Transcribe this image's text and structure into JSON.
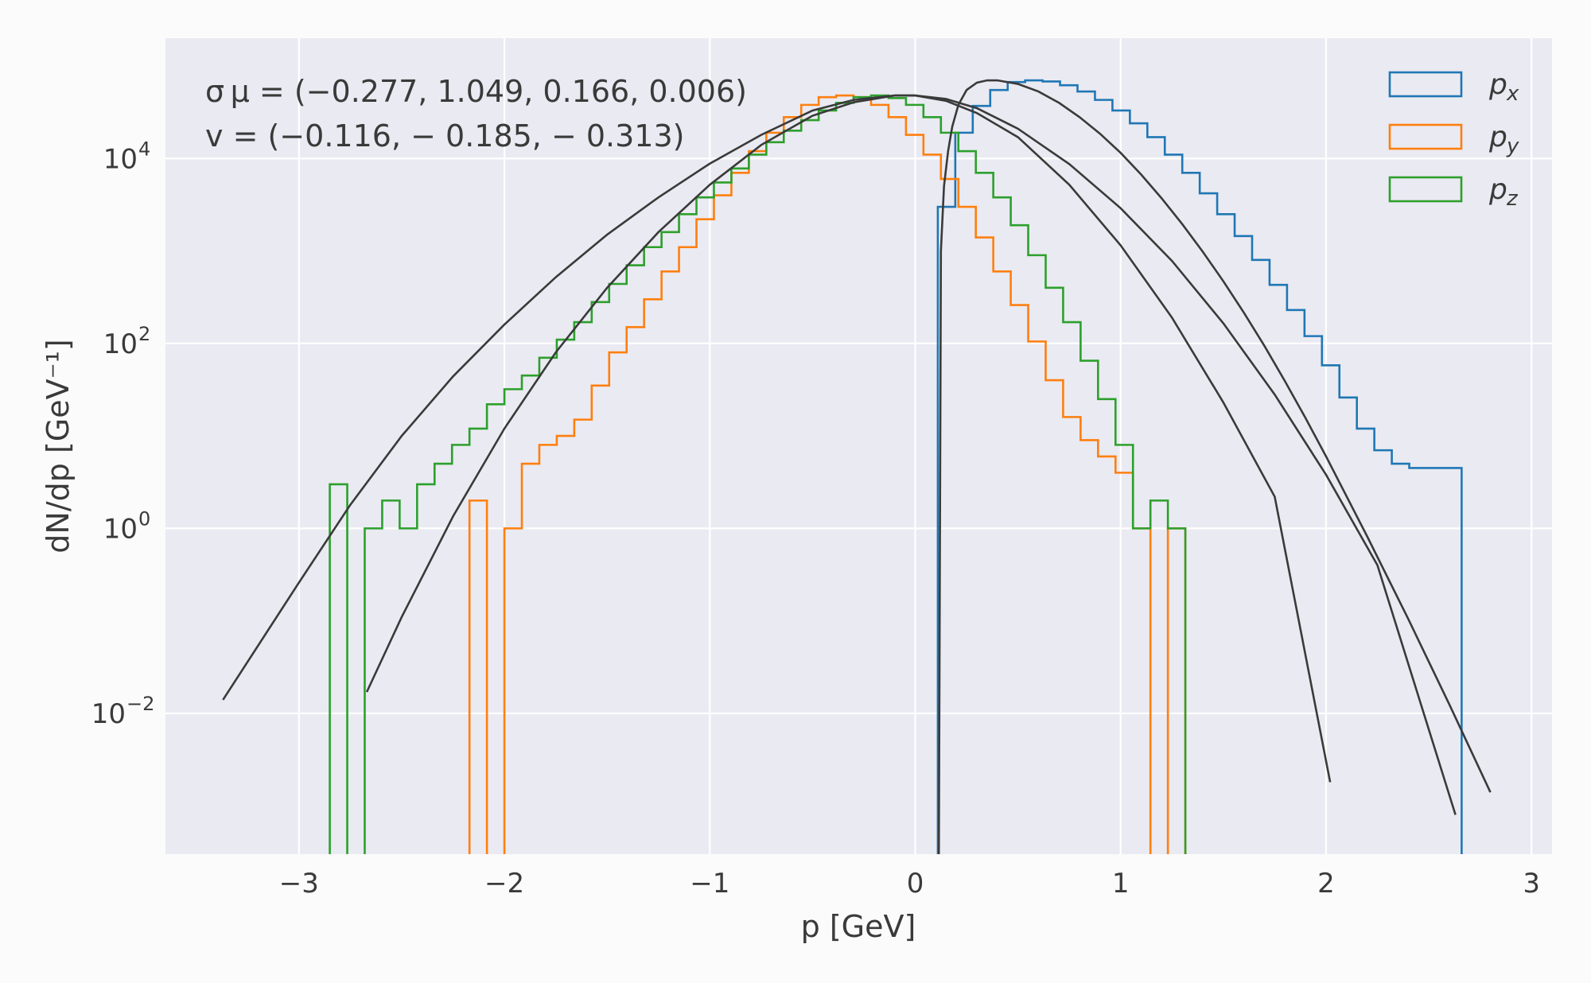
{
  "chart_data": {
    "type": "histogram",
    "title": "",
    "xlabel": "p [GeV]",
    "ylabel": "dN/dp [GeV⁻¹]",
    "xscale": "linear",
    "yscale": "log",
    "xlim": [
      -3.65,
      3.1
    ],
    "ylim": [
      0.0003,
      200000
    ],
    "grid": true,
    "legend_position": "top-right",
    "x_ticks": [
      -3,
      -2,
      -1,
      0,
      1,
      2,
      3
    ],
    "x_tick_labels": [
      "−3",
      "−2",
      "−1",
      "0",
      "1",
      "2",
      "3"
    ],
    "y_ticks": [
      0.01,
      1,
      100,
      10000
    ],
    "y_tick_labels": [
      {
        "base": "10",
        "exp": "−2"
      },
      {
        "base": "10",
        "exp": "0"
      },
      {
        "base": "10",
        "exp": "2"
      },
      {
        "base": "10",
        "exp": "4"
      }
    ],
    "annotations": [
      "σ μ = (−0.277, 1.049, 0.166, 0.006)",
      "v = (−0.116,  − 0.185,  − 0.313)"
    ],
    "bin_width": 0.085,
    "series": [
      {
        "name": "p_x",
        "label_main": "p",
        "label_sub": "x",
        "color": "#1f77b4",
        "bins_x0": 0.11,
        "counts": [
          3000,
          19000,
          37000,
          55000,
          67000,
          70000,
          68000,
          62000,
          53000,
          43000,
          33000,
          24000,
          17000,
          11000,
          7000,
          4200,
          2500,
          1450,
          800,
          430,
          230,
          120,
          58,
          26,
          12,
          7,
          5,
          4.5,
          4.5,
          4.5
        ]
      },
      {
        "name": "p_y",
        "label_main": "p",
        "label_sub": "y",
        "color": "#ff7f0e",
        "bins_x0": -2.17,
        "counts": [
          2,
          0,
          1,
          5,
          8,
          10,
          15,
          35,
          80,
          150,
          300,
          600,
          1100,
          2200,
          4000,
          7000,
          12000,
          19000,
          28000,
          38000,
          46000,
          48000,
          46000,
          38000,
          28000,
          18000,
          11000,
          6000,
          3000,
          1400,
          600,
          260,
          105,
          40,
          16,
          9,
          6,
          4,
          1,
          0,
          1
        ]
      },
      {
        "name": "p_z",
        "label_main": "p",
        "label_sub": "z",
        "color": "#2ca02c",
        "bins_x0": -2.85,
        "counts": [
          3,
          0,
          1,
          2,
          1,
          3,
          5,
          8,
          12,
          22,
          32,
          45,
          70,
          110,
          170,
          280,
          440,
          700,
          1100,
          1600,
          2500,
          3800,
          5500,
          7800,
          11000,
          15000,
          20000,
          26000,
          33000,
          40000,
          46000,
          48000,
          45000,
          38000,
          28000,
          19000,
          12000,
          7000,
          3800,
          1900,
          900,
          400,
          170,
          65,
          25,
          8,
          1,
          2,
          1
        ]
      }
    ],
    "fits": [
      {
        "name": "fit_x",
        "x": [
          0.115,
          0.125,
          0.14,
          0.16,
          0.18,
          0.21,
          0.25,
          0.3,
          0.35,
          0.4,
          0.5,
          0.6,
          0.7,
          0.8,
          0.9,
          1.0,
          1.1,
          1.2,
          1.3,
          1.4,
          1.5,
          1.6,
          1.7,
          1.8,
          1.9,
          2.0,
          2.2,
          2.4,
          2.6,
          2.8
        ],
        "y": [
          0.0003,
          1000,
          5000,
          12000,
          22000,
          38000,
          55000,
          66000,
          70000,
          70000,
          64000,
          53000,
          40000,
          28000,
          18500,
          11500,
          6700,
          3700,
          1950,
          980,
          470,
          215,
          94,
          39,
          15.6,
          6.0,
          0.82,
          0.105,
          0.0125,
          0.0014
        ]
      },
      {
        "name": "fit_y",
        "x": [
          -2.67,
          -2.5,
          -2.25,
          -2.0,
          -1.75,
          -1.5,
          -1.25,
          -1.0,
          -0.75,
          -0.5,
          -0.3,
          -0.1,
          0.0,
          0.15,
          0.3,
          0.5,
          0.75,
          1.0,
          1.25,
          1.5,
          1.75,
          2.0,
          2.25,
          2.63
        ],
        "y": [
          0.017,
          0.11,
          1.35,
          12,
          80,
          400,
          1600,
          5200,
          14000,
          29000,
          40500,
          48000,
          48000,
          44000,
          35000,
          21000,
          8700,
          2900,
          780,
          165,
          28,
          3.8,
          0.4,
          0.0008
        ]
      },
      {
        "name": "fit_z",
        "x": [
          -3.37,
          -3.0,
          -2.75,
          -2.5,
          -2.25,
          -2.0,
          -1.75,
          -1.5,
          -1.25,
          -1.0,
          -0.75,
          -0.5,
          -0.3,
          -0.1,
          0.0,
          0.15,
          0.3,
          0.5,
          0.75,
          1.0,
          1.25,
          1.5,
          1.75,
          2.02
        ],
        "y": [
          0.014,
          0.26,
          1.8,
          10,
          44,
          160,
          520,
          1500,
          3800,
          8800,
          18000,
          33000,
          43000,
          48000,
          48000,
          42000,
          31000,
          17000,
          5200,
          1150,
          190,
          23,
          2.2,
          0.0018
        ]
      }
    ]
  }
}
